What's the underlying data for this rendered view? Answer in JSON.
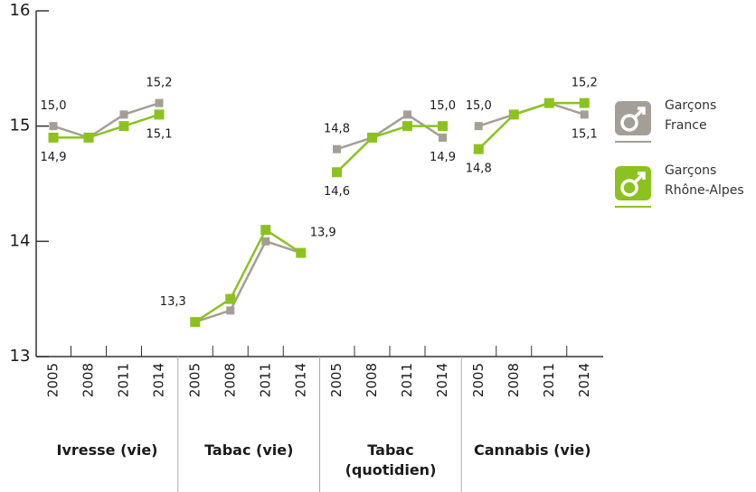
{
  "chart_data": {
    "type": "line",
    "categories": [
      "2005",
      "2008",
      "2011",
      "2014",
      "2005",
      "2008",
      "2011",
      "2014",
      "2005",
      "2008",
      "2011",
      "2014",
      "2005",
      "2008",
      "2011",
      "2014"
    ],
    "groups": [
      "Ivresse (vie)",
      "Tabac (vie)",
      "Tabac\n(quotidien)",
      "Cannabis (vie)"
    ],
    "series": [
      {
        "name": "Garçons\nFrance",
        "color": "#a39f96",
        "values": [
          15.0,
          14.9,
          15.1,
          15.2,
          13.3,
          13.4,
          14.0,
          13.9,
          14.8,
          14.9,
          15.1,
          14.9,
          15.0,
          15.1,
          15.2,
          15.1
        ],
        "value_labels": [
          "15,0",
          null,
          null,
          "15,2",
          "13,3",
          null,
          null,
          "13,9",
          "14,8",
          null,
          null,
          "14,9",
          "15,0",
          null,
          null,
          "15,1"
        ]
      },
      {
        "name": "Garçons\nRhône-Alpes",
        "color": "#8cc21f",
        "values": [
          14.9,
          14.9,
          15.0,
          15.1,
          13.3,
          13.5,
          14.1,
          13.9,
          14.6,
          14.9,
          15.0,
          15.0,
          14.8,
          15.1,
          15.2,
          15.2
        ],
        "value_labels": [
          "14,9",
          null,
          null,
          "15,1",
          null,
          null,
          null,
          null,
          "14,6",
          null,
          null,
          "15,0",
          "14,8",
          null,
          null,
          "15,2"
        ]
      }
    ],
    "ylim": [
      13,
      16
    ],
    "yticks": [
      13,
      14,
      15,
      16
    ]
  }
}
